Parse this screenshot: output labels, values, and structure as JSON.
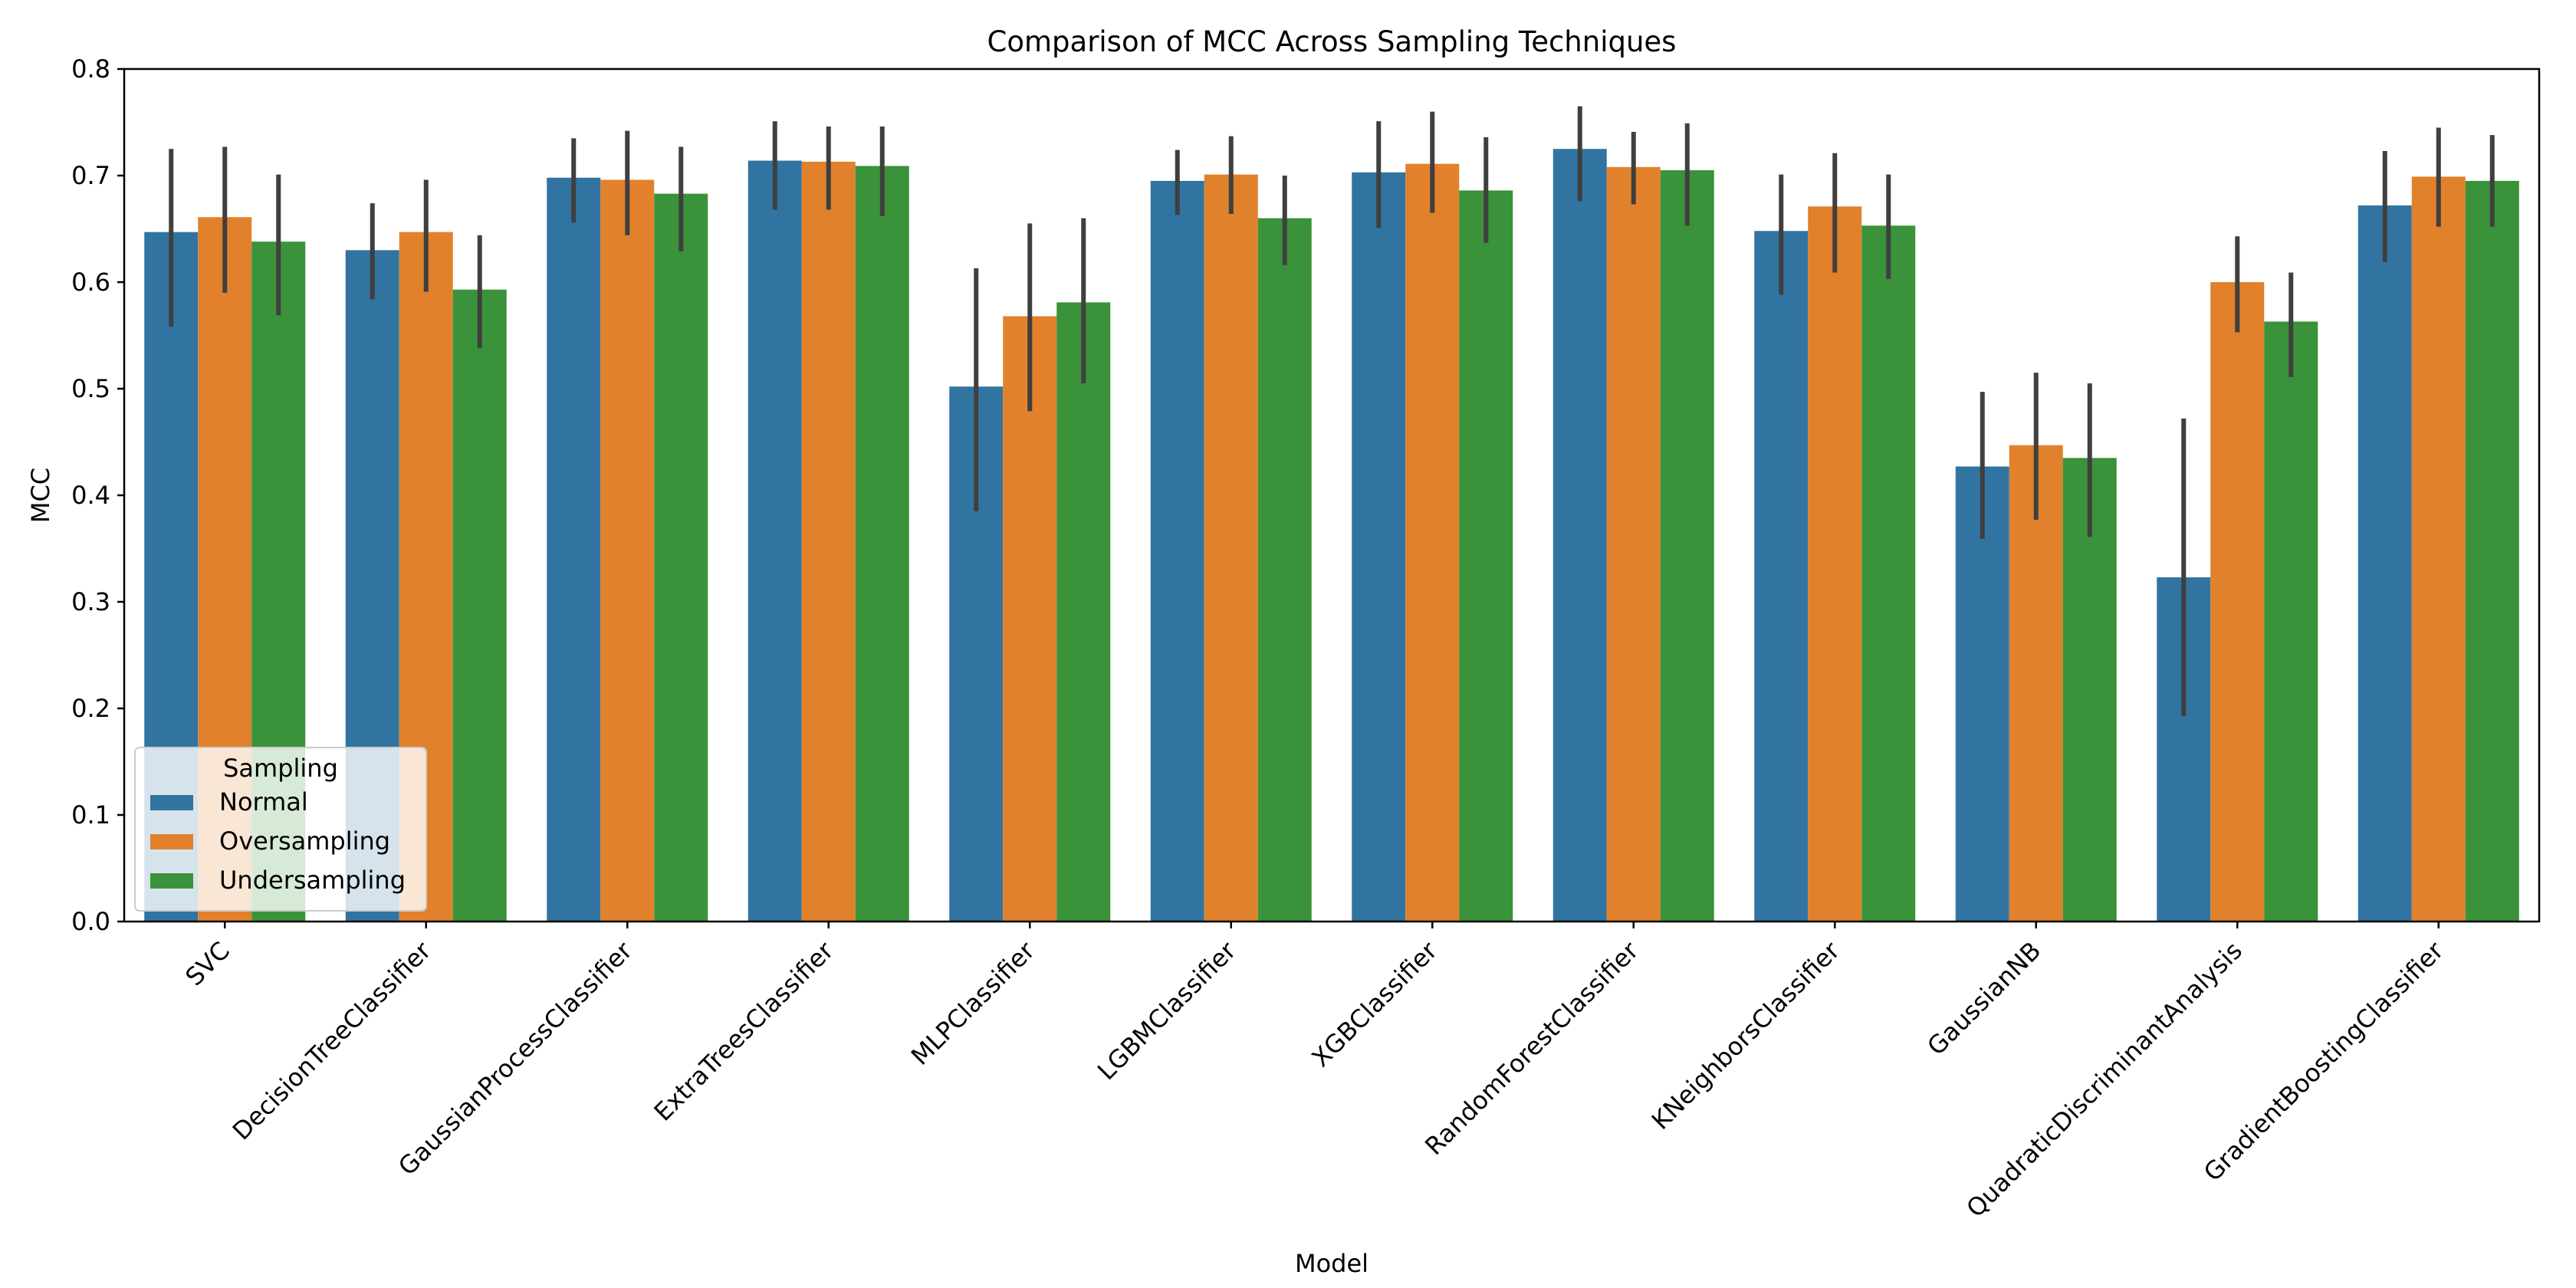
{
  "chart_data": {
    "type": "bar",
    "title": "Comparison of MCC Across Sampling Techniques",
    "xlabel": "Model",
    "ylabel": "MCC",
    "ylim": [
      0,
      0.8
    ],
    "yticks": [
      "0.0",
      "0.1",
      "0.2",
      "0.3",
      "0.4",
      "0.5",
      "0.6",
      "0.7",
      "0.8"
    ],
    "grid": false,
    "legend": {
      "title": "Sampling",
      "placement": "lower-left"
    },
    "categories": [
      "SVC",
      "DecisionTreeClassifier",
      "GaussianProcessClassifier",
      "ExtraTreesClassifier",
      "MLPClassifier",
      "LGBMClassifier",
      "XGBClassifier",
      "RandomForestClassifier",
      "KNeighborsClassifier",
      "GaussianNB",
      "QuadraticDiscriminantAnalysis",
      "GradientBoostingClassifier"
    ],
    "series": [
      {
        "name": "Normal",
        "color": "#3274a1",
        "values": [
          0.647,
          0.63,
          0.698,
          0.714,
          0.502,
          0.695,
          0.703,
          0.725,
          0.648,
          0.427,
          0.323,
          0.672
        ],
        "ci_low": [
          0.558,
          0.584,
          0.656,
          0.668,
          0.385,
          0.663,
          0.651,
          0.676,
          0.588,
          0.359,
          0.193,
          0.619
        ],
        "ci_high": [
          0.725,
          0.674,
          0.735,
          0.751,
          0.613,
          0.724,
          0.751,
          0.765,
          0.701,
          0.497,
          0.472,
          0.723
        ]
      },
      {
        "name": "Oversampling",
        "color": "#e1812c",
        "values": [
          0.661,
          0.647,
          0.696,
          0.713,
          0.568,
          0.701,
          0.711,
          0.708,
          0.671,
          0.447,
          0.6,
          0.699
        ],
        "ci_low": [
          0.59,
          0.591,
          0.644,
          0.668,
          0.479,
          0.664,
          0.665,
          0.673,
          0.609,
          0.377,
          0.553,
          0.652
        ],
        "ci_high": [
          0.727,
          0.696,
          0.742,
          0.746,
          0.655,
          0.737,
          0.76,
          0.741,
          0.721,
          0.515,
          0.643,
          0.745
        ]
      },
      {
        "name": "Undersampling",
        "color": "#3a923a",
        "values": [
          0.638,
          0.593,
          0.683,
          0.709,
          0.581,
          0.66,
          0.686,
          0.705,
          0.653,
          0.435,
          0.563,
          0.695
        ],
        "ci_low": [
          0.569,
          0.538,
          0.629,
          0.662,
          0.505,
          0.616,
          0.637,
          0.653,
          0.603,
          0.361,
          0.511,
          0.652
        ],
        "ci_high": [
          0.701,
          0.644,
          0.727,
          0.746,
          0.66,
          0.7,
          0.736,
          0.749,
          0.701,
          0.505,
          0.609,
          0.738
        ]
      }
    ],
    "errorbar_color": "#3f3f3f"
  }
}
